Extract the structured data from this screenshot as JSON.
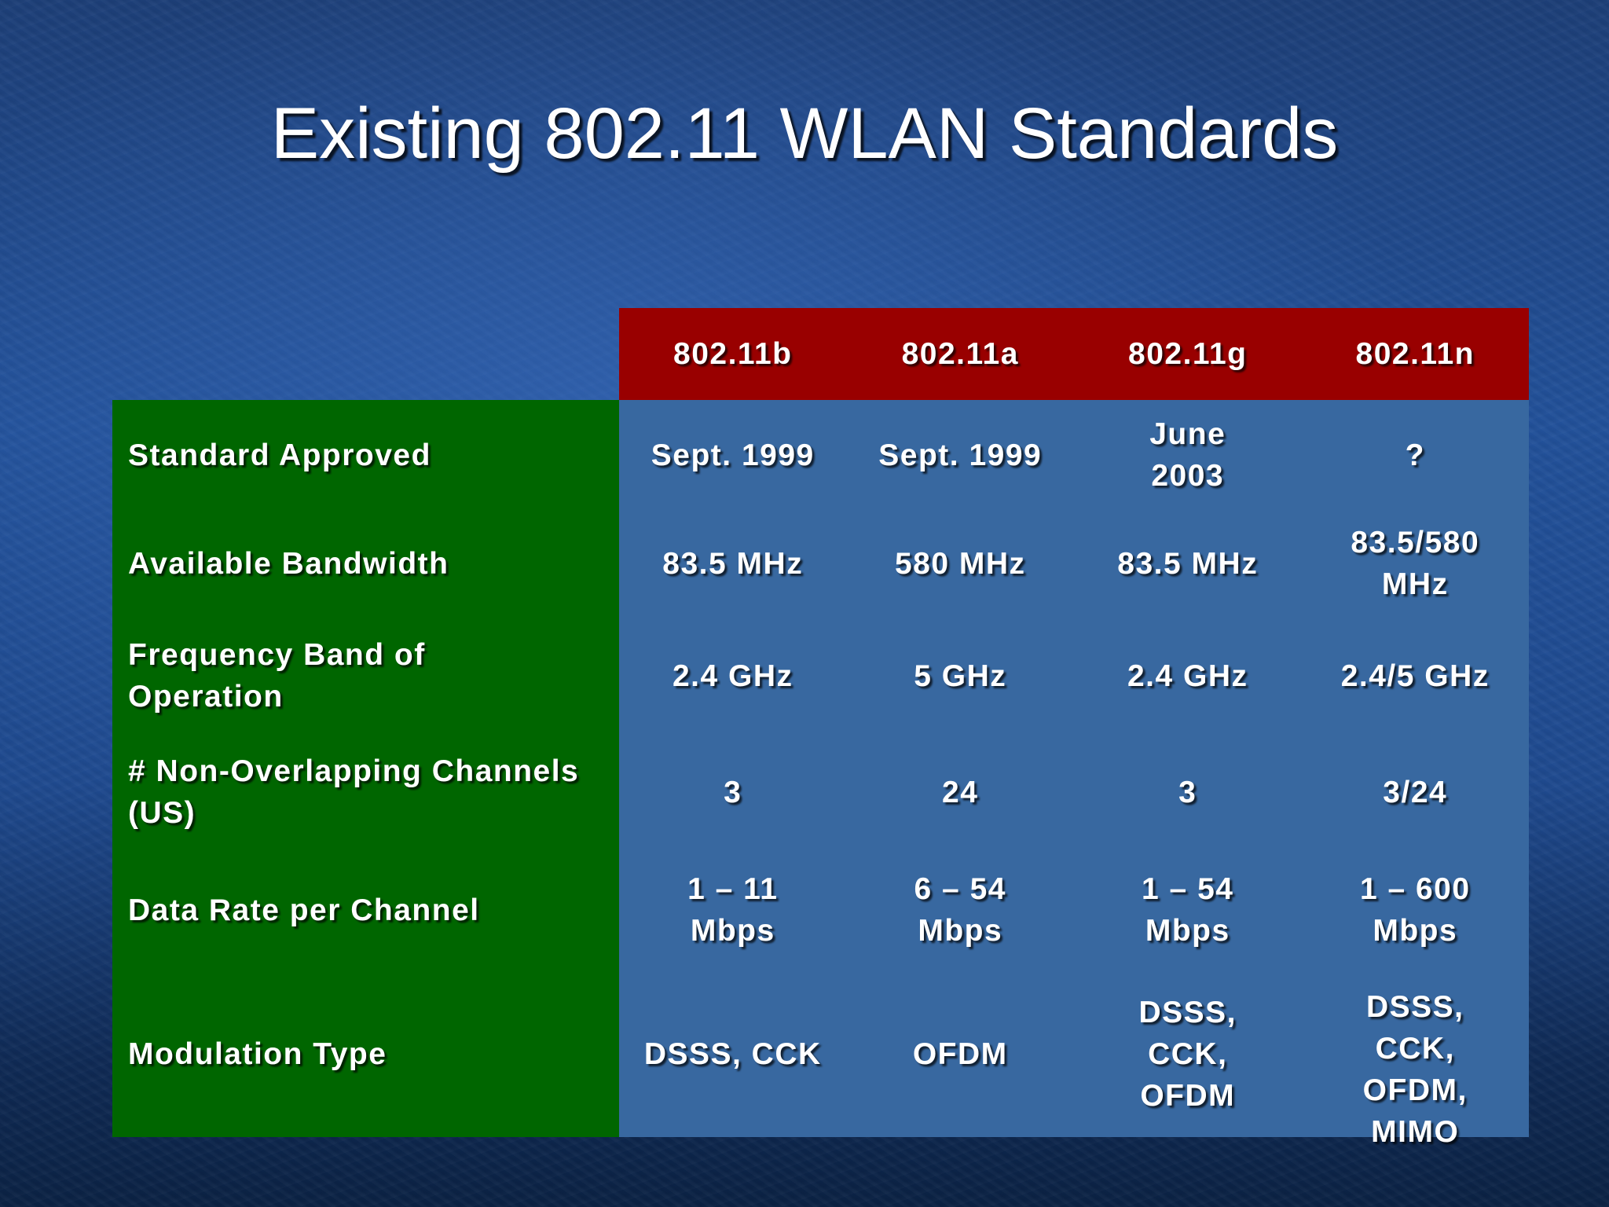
{
  "slide": {
    "title": "Existing 802.11 WLAN Standards"
  },
  "table": {
    "columns": [
      "802.11b",
      "802.11a",
      "802.11g",
      "802.11n"
    ],
    "rows": [
      {
        "label": "Standard Approved",
        "values": [
          "Sept. 1999",
          "Sept. 1999",
          "June 2003",
          "?"
        ]
      },
      {
        "label": "Available Bandwidth",
        "values": [
          "83.5 MHz",
          "580 MHz",
          "83.5 MHz",
          "83.5/580 MHz"
        ]
      },
      {
        "label": "Frequency Band of Operation",
        "values": [
          "2.4 GHz",
          "5 GHz",
          "2.4 GHz",
          "2.4/5 GHz"
        ]
      },
      {
        "label": "# Non-Overlapping Channels (US)",
        "values": [
          "3",
          "24",
          "3",
          "3/24"
        ]
      },
      {
        "label": "Data Rate per Channel",
        "values": [
          "1 – 11 Mbps",
          "6 – 54 Mbps",
          "1 – 54 Mbps",
          "1 – 600 Mbps"
        ]
      },
      {
        "label": "Modulation Type",
        "values": [
          "DSSS, CCK",
          "OFDM",
          "DSSS, CCK, OFDM",
          "DSSS, CCK, OFDM, MIMO"
        ]
      }
    ]
  },
  "colors": {
    "header_bg": "#990000",
    "label_bg": "#006600",
    "cell_bg": "#3868a0",
    "text": "#ffffff"
  }
}
